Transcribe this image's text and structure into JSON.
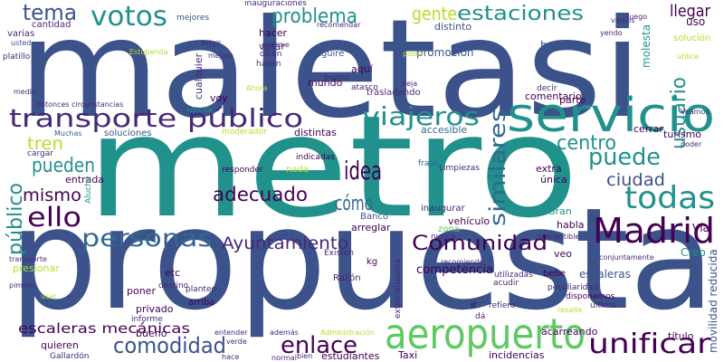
{
  "words": [
    "maletasi",
    "metro",
    "propuesta",
    "servicio",
    "aeropuerto",
    "transporte público",
    "Madrid",
    "todas",
    "Comunidad",
    "Ayuntamiento",
    "personas",
    "adecuado",
    "ello",
    "pueden",
    "mismo",
    "tren",
    "público",
    "idea",
    "cómo",
    "viajeros",
    "similares",
    "centro",
    "puede",
    "ciudad",
    "usuario",
    "votos",
    "tema",
    "problema",
    "gente",
    "estaciones",
    "llegar",
    "enlace",
    "unificar",
    "comodidad",
    "escaleras mecánicas",
    "competencia",
    "hoteles",
    "promoción",
    "distinto",
    "hacer",
    "votar",
    "mundo",
    "aquí",
    "voy",
    "cualquier",
    "mejores",
    "cantidad",
    "varias",
    "platillo",
    "usted",
    "distintas",
    "accesible",
    "moderador",
    "soluciones",
    "Muchas",
    "indicadas",
    "nada",
    "responder",
    "arreglar",
    "Banco",
    "frase",
    "Limpiezas",
    "inaugurar",
    "zona",
    "vehículo",
    "nunca",
    "Gran",
    "habla",
    "extra",
    "única",
    "veo",
    "bebe",
    "escaleras",
    "peculiaridad",
    "disponemos",
    "comentario",
    "parte",
    "decir",
    "cerrar",
    "turismo",
    "poder",
    "Vía",
    "Creo",
    "molesta",
    "solución",
    "uso",
    "movilidad reducida",
    "título",
    "incidencias",
    "acarreando",
    "estudiantes",
    "Taxi",
    "quieren",
    "Gallardón",
    "bueno",
    "privado",
    "poner",
    "etc",
    "destino",
    "planteo",
    "arriba",
    "informe",
    "presionar",
    "transporte",
    "pimero",
    "usar",
    "entrada",
    "cargar",
    "Aluche",
    "inauguraciones",
    "recomendar",
    "Aguire",
    "enorme",
    "dicen",
    "hacen",
    "exigir",
    "mejora",
    "Ahora",
    "solicita",
    "entonces circunstancias",
    "medio",
    "trasladando",
    "pidan",
    "deja",
    "Estupenda",
    "atasco",
    "bombo",
    "Existen",
    "kg",
    "Razón",
    "externalizados",
    "Administración",
    "además",
    "entender",
    "verde",
    "hace",
    "normal",
    "bien",
    "dá",
    "ir",
    "refiero",
    "acudir",
    "utilizadas",
    "recomiende",
    "Veamos",
    "utilice",
    "resalte",
    "ultima",
    "conjuntamente",
    "susceptible",
    "luego",
    "vamos",
    "yendo"
  ]
}
